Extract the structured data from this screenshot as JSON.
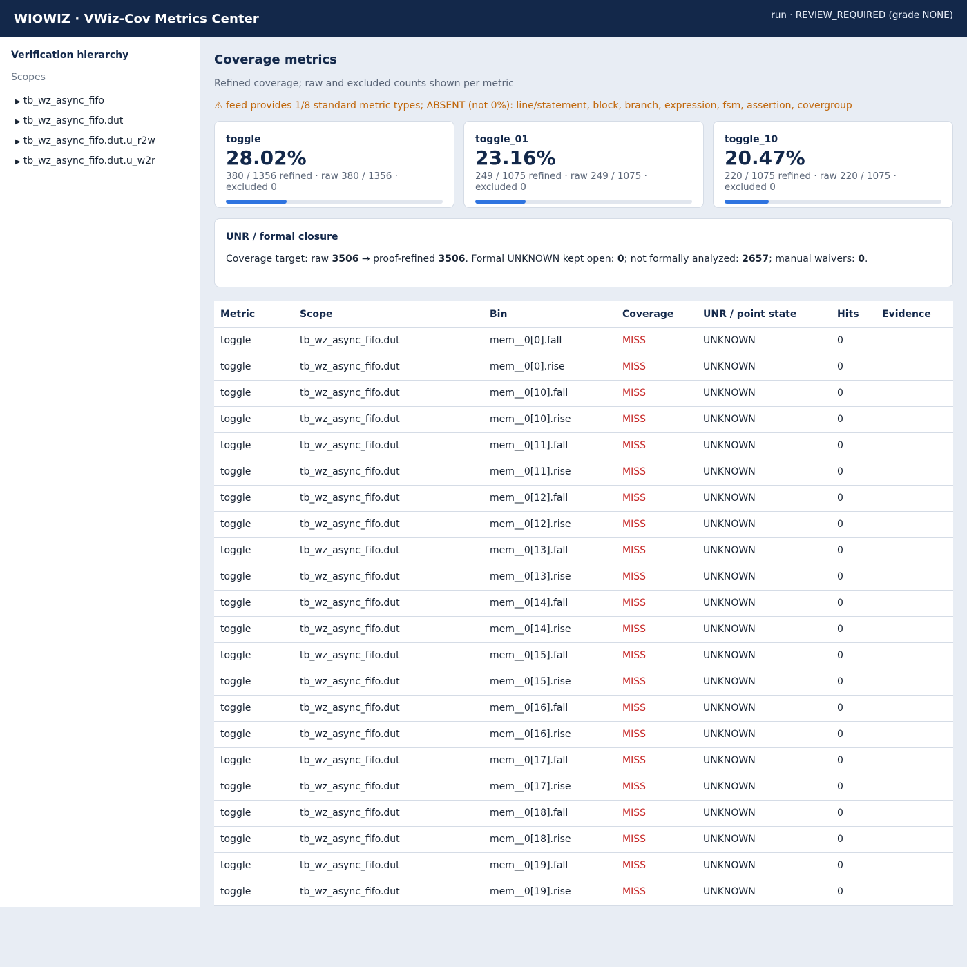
{
  "header": {
    "title": "WIOWIZ · VWiz-Cov Metrics Center",
    "status": "run · REVIEW_REQUIRED (grade NONE)"
  },
  "sidebar": {
    "heading": "Verification hierarchy",
    "subheading": "Scopes",
    "scopes": [
      "tb_wz_async_fifo",
      "tb_wz_async_fifo.dut",
      "tb_wz_async_fifo.dut.u_r2w",
      "tb_wz_async_fifo.dut.u_w2r"
    ]
  },
  "main": {
    "title": "Coverage metrics",
    "description": "Refined coverage; raw and excluded counts shown per metric",
    "warning": "⚠ feed provides 1/8 standard metric types; ABSENT (not 0%): line/statement, block, branch, expression, fsm, assertion, covergroup"
  },
  "cards": [
    {
      "name": "toggle",
      "percent": "28.02%",
      "counts": "380 / 1356 refined · raw 380 / 1356 · excluded 0",
      "fraction": 0.2802
    },
    {
      "name": "toggle_01",
      "percent": "23.16%",
      "counts": "249 / 1075 refined · raw 249 / 1075 · excluded 0",
      "fraction": 0.2316
    },
    {
      "name": "toggle_10",
      "percent": "20.47%",
      "counts": "220 / 1075 refined · raw 220 / 1075 · excluded 0",
      "fraction": 0.2047
    }
  ],
  "unr": {
    "title": "UNR / formal closure",
    "t1": "Coverage target: raw ",
    "raw": "3506",
    "t2": " → proof-refined ",
    "refined": "3506",
    "t3": ". Formal UNKNOWN kept open: ",
    "unknown_open": "0",
    "t4": "; not formally analyzed: ",
    "not_analyzed": "2657",
    "t5": "; manual waivers: ",
    "waivers": "0",
    "t6": "."
  },
  "table": {
    "headers": [
      "Metric",
      "Scope",
      "Bin",
      "Coverage",
      "UNR / point state",
      "Hits",
      "Evidence"
    ],
    "rows": [
      [
        "toggle",
        "tb_wz_async_fifo.dut",
        "mem__0[0].fall",
        "MISS",
        "UNKNOWN",
        "0",
        ""
      ],
      [
        "toggle",
        "tb_wz_async_fifo.dut",
        "mem__0[0].rise",
        "MISS",
        "UNKNOWN",
        "0",
        ""
      ],
      [
        "toggle",
        "tb_wz_async_fifo.dut",
        "mem__0[10].fall",
        "MISS",
        "UNKNOWN",
        "0",
        ""
      ],
      [
        "toggle",
        "tb_wz_async_fifo.dut",
        "mem__0[10].rise",
        "MISS",
        "UNKNOWN",
        "0",
        ""
      ],
      [
        "toggle",
        "tb_wz_async_fifo.dut",
        "mem__0[11].fall",
        "MISS",
        "UNKNOWN",
        "0",
        ""
      ],
      [
        "toggle",
        "tb_wz_async_fifo.dut",
        "mem__0[11].rise",
        "MISS",
        "UNKNOWN",
        "0",
        ""
      ],
      [
        "toggle",
        "tb_wz_async_fifo.dut",
        "mem__0[12].fall",
        "MISS",
        "UNKNOWN",
        "0",
        ""
      ],
      [
        "toggle",
        "tb_wz_async_fifo.dut",
        "mem__0[12].rise",
        "MISS",
        "UNKNOWN",
        "0",
        ""
      ],
      [
        "toggle",
        "tb_wz_async_fifo.dut",
        "mem__0[13].fall",
        "MISS",
        "UNKNOWN",
        "0",
        ""
      ],
      [
        "toggle",
        "tb_wz_async_fifo.dut",
        "mem__0[13].rise",
        "MISS",
        "UNKNOWN",
        "0",
        ""
      ],
      [
        "toggle",
        "tb_wz_async_fifo.dut",
        "mem__0[14].fall",
        "MISS",
        "UNKNOWN",
        "0",
        ""
      ],
      [
        "toggle",
        "tb_wz_async_fifo.dut",
        "mem__0[14].rise",
        "MISS",
        "UNKNOWN",
        "0",
        ""
      ],
      [
        "toggle",
        "tb_wz_async_fifo.dut",
        "mem__0[15].fall",
        "MISS",
        "UNKNOWN",
        "0",
        ""
      ],
      [
        "toggle",
        "tb_wz_async_fifo.dut",
        "mem__0[15].rise",
        "MISS",
        "UNKNOWN",
        "0",
        ""
      ],
      [
        "toggle",
        "tb_wz_async_fifo.dut",
        "mem__0[16].fall",
        "MISS",
        "UNKNOWN",
        "0",
        ""
      ],
      [
        "toggle",
        "tb_wz_async_fifo.dut",
        "mem__0[16].rise",
        "MISS",
        "UNKNOWN",
        "0",
        ""
      ],
      [
        "toggle",
        "tb_wz_async_fifo.dut",
        "mem__0[17].fall",
        "MISS",
        "UNKNOWN",
        "0",
        ""
      ],
      [
        "toggle",
        "tb_wz_async_fifo.dut",
        "mem__0[17].rise",
        "MISS",
        "UNKNOWN",
        "0",
        ""
      ],
      [
        "toggle",
        "tb_wz_async_fifo.dut",
        "mem__0[18].fall",
        "MISS",
        "UNKNOWN",
        "0",
        ""
      ],
      [
        "toggle",
        "tb_wz_async_fifo.dut",
        "mem__0[18].rise",
        "MISS",
        "UNKNOWN",
        "0",
        ""
      ],
      [
        "toggle",
        "tb_wz_async_fifo.dut",
        "mem__0[19].fall",
        "MISS",
        "UNKNOWN",
        "0",
        ""
      ],
      [
        "toggle",
        "tb_wz_async_fifo.dut",
        "mem__0[19].rise",
        "MISS",
        "UNKNOWN",
        "0",
        ""
      ]
    ]
  },
  "colors": {
    "header_bg": "#13284a",
    "accent": "#2f74e0",
    "warning": "#c0660a",
    "miss": "#c62828"
  }
}
